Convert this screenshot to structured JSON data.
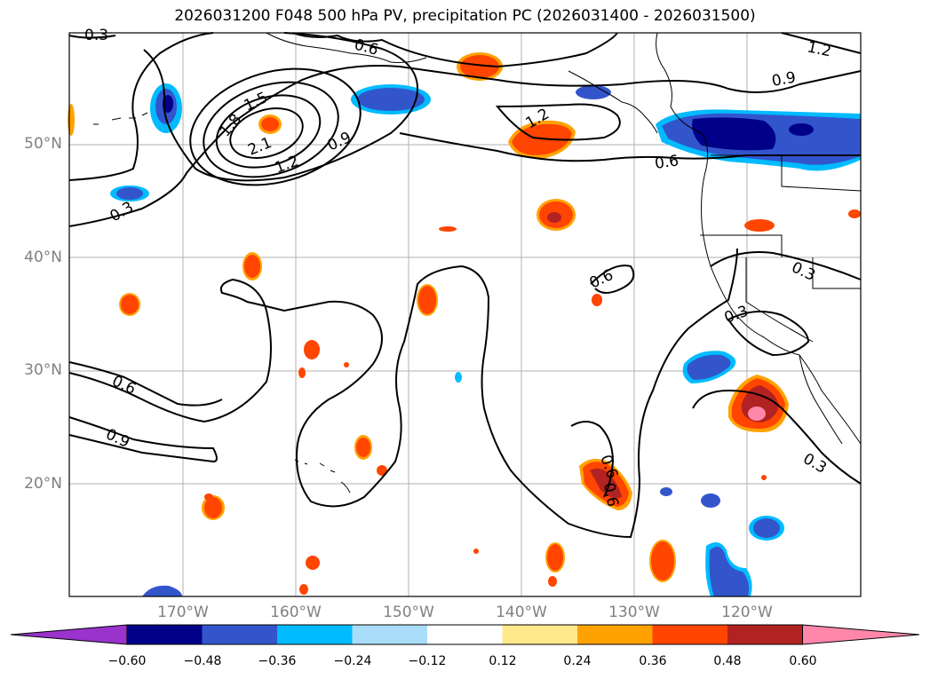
{
  "title": "2026031200 F048 500 hPa PV, precipitation PC (2026031400 - 2026031500)",
  "map": {
    "lon_range": [
      180,
      110
    ],
    "lat_range": [
      10,
      60
    ],
    "lat_labels": [
      "50°N",
      "40°N",
      "30°N",
      "20°N"
    ],
    "lon_labels": [
      "170°W",
      "160°W",
      "150°W",
      "140°W",
      "130°W",
      "120°W"
    ],
    "contour_labels": [
      "0.3",
      "0.6",
      "1.2",
      "1.5",
      "1.8",
      "2.1",
      "1.2",
      "0.9",
      "1.2",
      "0.9",
      "0.6",
      "0.3",
      "0.6",
      "0.3",
      "0.3",
      "0.6",
      "0.9",
      "0.6",
      "0.3",
      "0.6"
    ],
    "contour_color": "#000000",
    "coast_color": "#000000"
  },
  "colorbar": {
    "tick_labels": [
      "−0.60",
      "−0.48",
      "−0.36",
      "−0.24",
      "−0.12",
      "0.12",
      "0.24",
      "0.36",
      "0.48",
      "0.60"
    ],
    "colors": [
      "#9933cc",
      "#000088",
      "#3355cc",
      "#00bbff",
      "#aaddf8",
      "#ffffff",
      "#ffe98a",
      "#ffa200",
      "#ff4500",
      "#b22222",
      "#ff88aa"
    ]
  }
}
